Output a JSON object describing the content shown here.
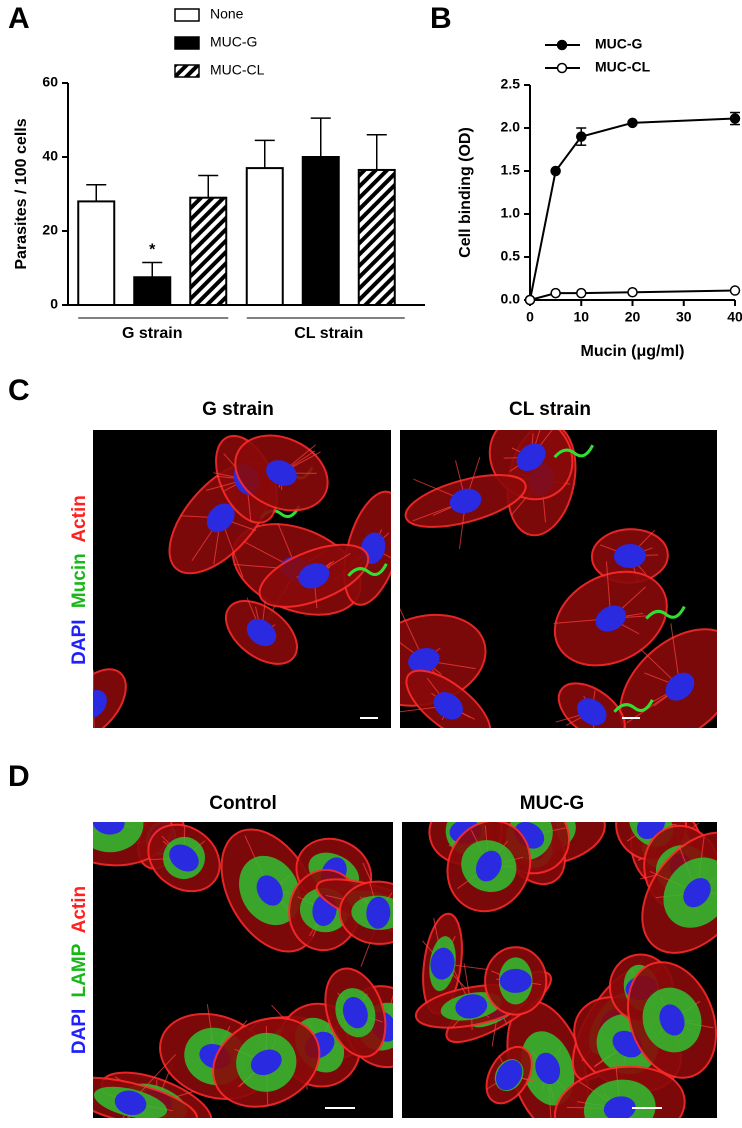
{
  "chart_data": [
    {
      "type": "bar",
      "panel_label": "A",
      "ylabel": "Parasites / 100 cells",
      "categories": [
        "G strain",
        "CL strain"
      ],
      "series": [
        {
          "name": "None",
          "color": "#ffffff",
          "values": [
            28,
            37
          ],
          "errors": [
            4.5,
            7.5
          ]
        },
        {
          "name": "MUC-G",
          "color": "#000000",
          "values": [
            7.5,
            40
          ],
          "errors": [
            4,
            10.5
          ]
        },
        {
          "name": "MUC-CL",
          "color": "#ffffff",
          "hatch": true,
          "values": [
            29,
            36.5
          ],
          "errors": [
            6,
            9.5
          ]
        }
      ],
      "ylim": [
        0,
        60
      ],
      "yticks": [
        0,
        20,
        40,
        60
      ],
      "annotation": "*"
    },
    {
      "type": "line",
      "panel_label": "B",
      "xlabel": "Mucin (μg/ml)",
      "ylabel": "Cell binding (OD)",
      "x": [
        0,
        5,
        10,
        20,
        40
      ],
      "series": [
        {
          "name": "MUC-G",
          "color": "#000000",
          "marker": "filled",
          "values": [
            0,
            1.5,
            1.9,
            2.06,
            2.11
          ],
          "errors": [
            0,
            0,
            0.1,
            0,
            0.07
          ]
        },
        {
          "name": "MUC-CL",
          "color": "#000000",
          "marker": "open",
          "values": [
            0,
            0.08,
            0.08,
            0.09,
            0.11
          ],
          "errors": [
            0,
            0,
            0,
            0,
            0
          ]
        }
      ],
      "xlim": [
        0,
        40
      ],
      "xticks": [
        0,
        10,
        20,
        30,
        40
      ],
      "ylim": [
        0,
        2.5
      ],
      "yticks": [
        {
          "value": 0,
          "label": "0.0"
        },
        {
          "value": 0.5,
          "label": "0.5"
        },
        {
          "value": 1,
          "label": "1.0"
        },
        {
          "value": 1.5,
          "label": "1.5"
        },
        {
          "value": 2,
          "label": "2.0"
        },
        {
          "value": 2.5,
          "label": "2.5"
        }
      ],
      "legend": "top-left"
    }
  ],
  "panel_c": {
    "label": "C",
    "titles": [
      "G strain",
      "CL strain"
    ],
    "stain_labels": [
      "DAPI",
      "Mucin",
      "Actin"
    ]
  },
  "panel_d": {
    "label": "D",
    "titles": [
      "Control",
      "MUC-G"
    ],
    "stain_labels": [
      "DAPI",
      "LAMP",
      "Actin"
    ]
  }
}
